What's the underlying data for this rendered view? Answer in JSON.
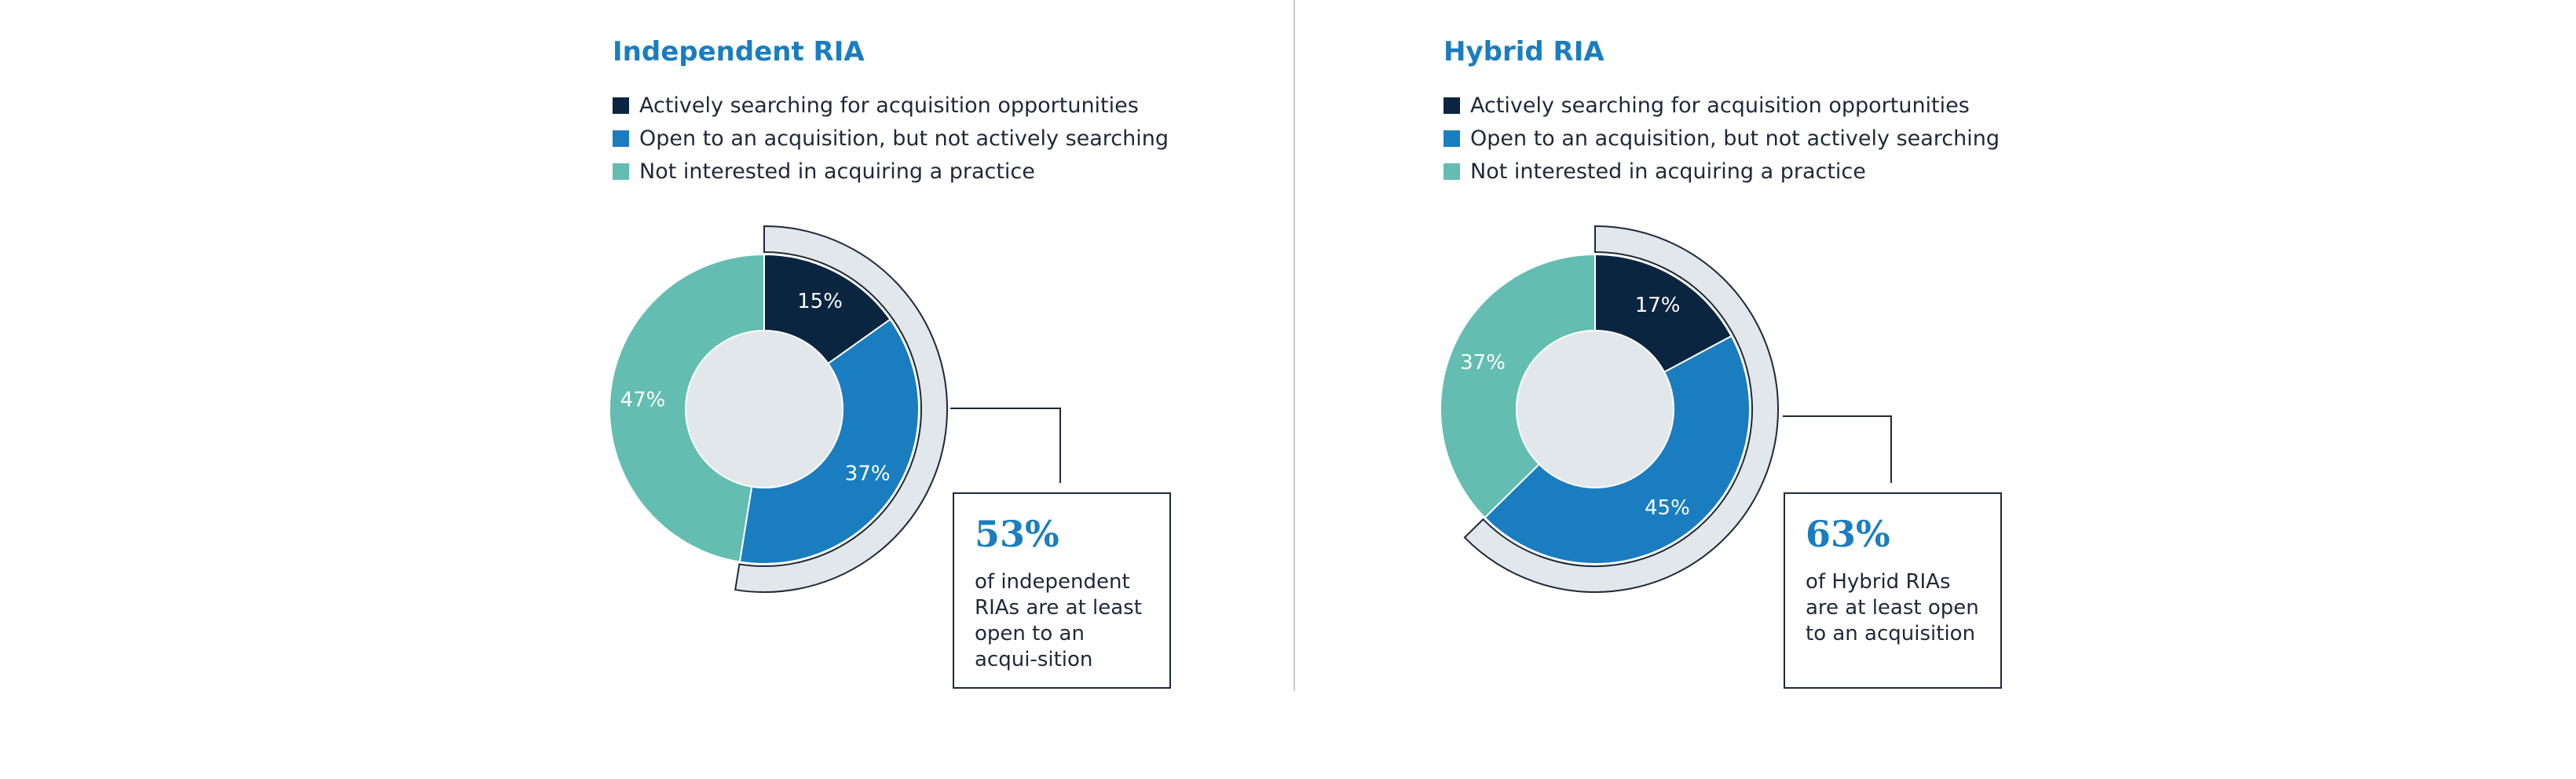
{
  "legend_colors": [
    "#0b2541",
    "#1a7dc0",
    "#63bdb1"
  ],
  "callout_arc_color": "#e1e7ea",
  "donut_center_color": "#e1e7ea",
  "charts": [
    {
      "title": "Independent RIA",
      "legend": [
        "Actively searching for acquisition opportunities",
        "Open to an acquisition, but not actively searching",
        "Not interested in acquiring a practice"
      ],
      "highlight": {
        "value": "53%",
        "text": "of independent RIAs are at least open to an acqui-sition"
      }
    },
    {
      "title": "Hybrid RIA",
      "legend": [
        "Actively searching for acquisition opportunities",
        "Open to an acquisition, but not actively searching",
        "Not interested in acquiring a practice"
      ],
      "highlight": {
        "value": "63%",
        "text": "of Hybrid RIAs are at least open to an acquisition"
      }
    }
  ],
  "chart_data": [
    {
      "type": "pie",
      "title": "Independent RIA",
      "categories": [
        "Actively searching for acquisition opportunities",
        "Open to an acquisition, but not actively searching",
        "Not interested in acquiring a practice"
      ],
      "values": [
        15,
        37,
        47
      ],
      "labels": [
        "15%",
        "37%",
        "47%"
      ],
      "colors": [
        "#0b2541",
        "#1a7dc0",
        "#63bdb1"
      ],
      "highlight_total": 53
    },
    {
      "type": "pie",
      "title": "Hybrid RIA",
      "categories": [
        "Actively searching for acquisition opportunities",
        "Open to an acquisition, but not actively searching",
        "Not interested in acquiring a practice"
      ],
      "values": [
        17,
        45,
        37
      ],
      "labels": [
        "17%",
        "45%",
        "37%"
      ],
      "colors": [
        "#0b2541",
        "#1a7dc0",
        "#63bdb1"
      ],
      "highlight_total": 63
    }
  ]
}
